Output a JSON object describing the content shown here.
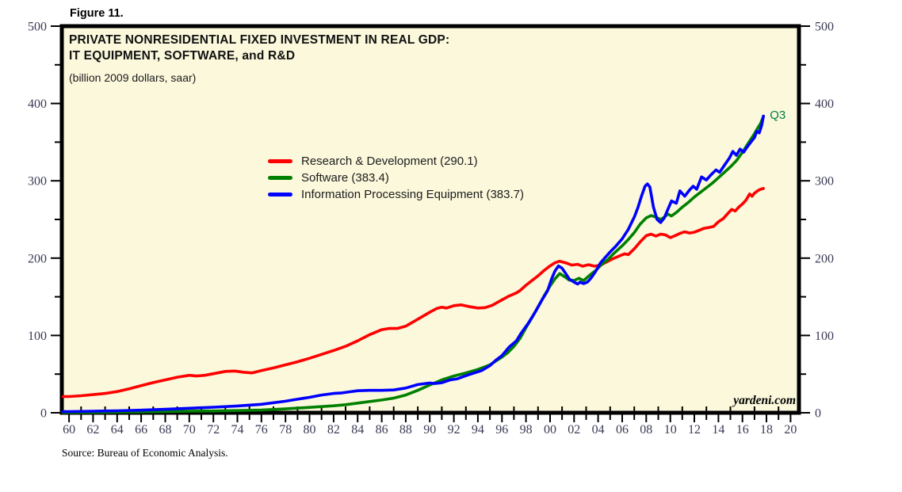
{
  "figure_label": "Figure 11.",
  "title_line1": "PRIVATE NONRESIDENTIAL FIXED INVESTMENT IN REAL GDP:",
  "title_line2": "IT EQUIPMENT, SOFTWARE, and R&D",
  "subtitle": "(billion 2009 dollars, saar)",
  "watermark": "yardeni.com",
  "source": "Source: Bureau of Economic Analysis.",
  "colors": {
    "plot_bg": "#fbf8dc",
    "axis": "#000000",
    "tick_label": "#3a3a55",
    "end_label_color": "#007d42"
  },
  "chart_data": {
    "type": "line",
    "title": "PRIVATE NONRESIDENTIAL FIXED INVESTMENT IN REAL GDP: IT EQUIPMENT, SOFTWARE, and R&D",
    "subtitle": "(billion 2009 dollars, saar)",
    "xlabel": "",
    "ylabel": "billion 2009 dollars, saar",
    "xlim": [
      1959.4,
      2020.7
    ],
    "ylim": [
      0,
      500
    ],
    "grid": false,
    "legend_position": "upper-middle-left",
    "end_label": "Q3",
    "end_label_year": 2017.75,
    "end_label_value": 383.5,
    "y_ticks": [
      0,
      100,
      200,
      300,
      400,
      500
    ],
    "y_minor_step": 50,
    "x_tick_years": [
      1960,
      1962,
      1964,
      1966,
      1968,
      1970,
      1972,
      1974,
      1976,
      1978,
      1980,
      1982,
      1984,
      1986,
      1988,
      1990,
      1992,
      1994,
      1996,
      1998,
      2000,
      2002,
      2004,
      2006,
      2008,
      2010,
      2012,
      2014,
      2016,
      2018,
      2020
    ],
    "x_tick_labels": [
      "60",
      "62",
      "64",
      "66",
      "68",
      "70",
      "72",
      "74",
      "76",
      "78",
      "80",
      "82",
      "84",
      "86",
      "88",
      "90",
      "92",
      "94",
      "96",
      "98",
      "00",
      "02",
      "04",
      "06",
      "08",
      "10",
      "12",
      "14",
      "16",
      "18",
      "20"
    ],
    "series": [
      {
        "name": "Research & Development (290.1)",
        "last_value": 290.1,
        "color": "#ff0000",
        "points": [
          [
            1959.5,
            21
          ],
          [
            1960,
            21
          ],
          [
            1961,
            22
          ],
          [
            1962,
            23.5
          ],
          [
            1963,
            25
          ],
          [
            1964,
            27.5
          ],
          [
            1965,
            31
          ],
          [
            1966,
            35
          ],
          [
            1967,
            39
          ],
          [
            1968,
            42.5
          ],
          [
            1969,
            46
          ],
          [
            1970,
            48.5
          ],
          [
            1970.6,
            47.5
          ],
          [
            1971.3,
            48.5
          ],
          [
            1972,
            50.5
          ],
          [
            1973,
            53.5
          ],
          [
            1973.8,
            54
          ],
          [
            1974.5,
            52.5
          ],
          [
            1975.2,
            51.5
          ],
          [
            1976,
            54.5
          ],
          [
            1977,
            58
          ],
          [
            1978,
            62
          ],
          [
            1979,
            66
          ],
          [
            1980,
            70.5
          ],
          [
            1981,
            75.5
          ],
          [
            1982,
            80.5
          ],
          [
            1983,
            86
          ],
          [
            1984,
            93
          ],
          [
            1985,
            101
          ],
          [
            1986,
            107.5
          ],
          [
            1986.6,
            109
          ],
          [
            1987.3,
            109
          ],
          [
            1988,
            112
          ],
          [
            1989,
            121
          ],
          [
            1990,
            130
          ],
          [
            1990.6,
            135
          ],
          [
            1991,
            136.5
          ],
          [
            1991.4,
            135.5
          ],
          [
            1992,
            138.5
          ],
          [
            1992.6,
            139.5
          ],
          [
            1993.2,
            137.5
          ],
          [
            1994,
            135.5
          ],
          [
            1994.6,
            136
          ],
          [
            1995.2,
            139
          ],
          [
            1996,
            146
          ],
          [
            1996.6,
            151
          ],
          [
            1997.2,
            155
          ],
          [
            1997.5,
            158
          ],
          [
            1998,
            165
          ],
          [
            1998.5,
            171
          ],
          [
            1999,
            177
          ],
          [
            1999.5,
            184
          ],
          [
            2000,
            190
          ],
          [
            2000.4,
            194
          ],
          [
            2000.8,
            196
          ],
          [
            2001.3,
            194
          ],
          [
            2001.8,
            191
          ],
          [
            2002.3,
            192
          ],
          [
            2002.7,
            189.5
          ],
          [
            2003.2,
            191.5
          ],
          [
            2003.7,
            189.5
          ],
          [
            2004.2,
            191
          ],
          [
            2004.7,
            195
          ],
          [
            2005.2,
            199
          ],
          [
            2005.8,
            203
          ],
          [
            2006.2,
            205.5
          ],
          [
            2006.5,
            204.5
          ],
          [
            2007,
            212
          ],
          [
            2007.5,
            221
          ],
          [
            2008,
            229
          ],
          [
            2008.4,
            231
          ],
          [
            2008.8,
            228.5
          ],
          [
            2009.2,
            231
          ],
          [
            2009.6,
            230
          ],
          [
            2010,
            226.5
          ],
          [
            2010.4,
            229
          ],
          [
            2010.8,
            232
          ],
          [
            2011.2,
            234
          ],
          [
            2011.6,
            232.5
          ],
          [
            2012,
            233.5
          ],
          [
            2012.4,
            236
          ],
          [
            2012.8,
            238.5
          ],
          [
            2013.2,
            239.5
          ],
          [
            2013.6,
            241
          ],
          [
            2014,
            247
          ],
          [
            2014.4,
            251
          ],
          [
            2014.8,
            258
          ],
          [
            2015.1,
            263
          ],
          [
            2015.4,
            261
          ],
          [
            2015.7,
            266
          ],
          [
            2016,
            270
          ],
          [
            2016.3,
            275
          ],
          [
            2016.6,
            283
          ],
          [
            2016.8,
            280
          ],
          [
            2017,
            284
          ],
          [
            2017.25,
            287
          ],
          [
            2017.5,
            289
          ],
          [
            2017.75,
            290.1
          ]
        ]
      },
      {
        "name": "Software (383.4)",
        "last_value": 383.4,
        "color": "#008000",
        "points": [
          [
            1959.5,
            0.4
          ],
          [
            1960,
            0.4
          ],
          [
            1962,
            0.6
          ],
          [
            1964,
            0.9
          ],
          [
            1966,
            1.2
          ],
          [
            1968,
            1.6
          ],
          [
            1970,
            2
          ],
          [
            1972,
            2.4
          ],
          [
            1974,
            2.9
          ],
          [
            1976,
            3.6
          ],
          [
            1978,
            5
          ],
          [
            1980,
            7
          ],
          [
            1982,
            9
          ],
          [
            1983,
            10.5
          ],
          [
            1984,
            12.5
          ],
          [
            1985,
            14.5
          ],
          [
            1986,
            16.5
          ],
          [
            1987,
            19
          ],
          [
            1988,
            23
          ],
          [
            1989,
            29
          ],
          [
            1990,
            36
          ],
          [
            1991,
            42.5
          ],
          [
            1992,
            47.5
          ],
          [
            1993,
            51.5
          ],
          [
            1994,
            56
          ],
          [
            1995,
            62
          ],
          [
            1996,
            72
          ],
          [
            1996.5,
            78
          ],
          [
            1997,
            86
          ],
          [
            1997.5,
            96
          ],
          [
            1998,
            110
          ],
          [
            1998.5,
            123
          ],
          [
            1999,
            137
          ],
          [
            1999.5,
            151
          ],
          [
            2000,
            164
          ],
          [
            2000.4,
            173
          ],
          [
            2000.8,
            180
          ],
          [
            2001.2,
            176
          ],
          [
            2001.6,
            171.5
          ],
          [
            2002,
            171
          ],
          [
            2002.4,
            174
          ],
          [
            2002.8,
            171
          ],
          [
            2003.3,
            178
          ],
          [
            2003.8,
            184
          ],
          [
            2004.3,
            192
          ],
          [
            2004.8,
            198
          ],
          [
            2005.3,
            206
          ],
          [
            2006,
            216
          ],
          [
            2006.5,
            224
          ],
          [
            2007,
            233
          ],
          [
            2007.5,
            244
          ],
          [
            2008,
            252
          ],
          [
            2008.4,
            255
          ],
          [
            2008.8,
            253
          ],
          [
            2009.2,
            250
          ],
          [
            2009.5,
            253
          ],
          [
            2009.8,
            257
          ],
          [
            2010.1,
            254.5
          ],
          [
            2010.5,
            259
          ],
          [
            2011,
            266
          ],
          [
            2011.5,
            272
          ],
          [
            2012,
            279
          ],
          [
            2012.5,
            285
          ],
          [
            2013,
            291
          ],
          [
            2013.5,
            297
          ],
          [
            2014,
            304
          ],
          [
            2014.5,
            311
          ],
          [
            2015,
            318
          ],
          [
            2015.5,
            326
          ],
          [
            2016,
            337
          ],
          [
            2016.5,
            349
          ],
          [
            2017,
            361
          ],
          [
            2017.3,
            369
          ],
          [
            2017.5,
            374
          ],
          [
            2017.75,
            383.4
          ]
        ]
      },
      {
        "name": "Information Processing Equipment (383.7)",
        "last_value": 383.7,
        "color": "#0000ff",
        "points": [
          [
            1959.5,
            1.5
          ],
          [
            1960,
            1.5
          ],
          [
            1962,
            2
          ],
          [
            1964,
            2.6
          ],
          [
            1966,
            3.4
          ],
          [
            1968,
            4.5
          ],
          [
            1970,
            5.8
          ],
          [
            1972,
            7.2
          ],
          [
            1974,
            8.8
          ],
          [
            1976,
            11
          ],
          [
            1978,
            15
          ],
          [
            1979,
            17.5
          ],
          [
            1980,
            20
          ],
          [
            1981,
            23
          ],
          [
            1982,
            25
          ],
          [
            1982.6,
            25.5
          ],
          [
            1983.3,
            27
          ],
          [
            1984,
            28.5
          ],
          [
            1985,
            29
          ],
          [
            1986,
            29
          ],
          [
            1987,
            29.5
          ],
          [
            1988,
            32
          ],
          [
            1989,
            36.5
          ],
          [
            1990,
            38.5
          ],
          [
            1990.4,
            37.8
          ],
          [
            1991,
            38.8
          ],
          [
            1991.7,
            42.5
          ],
          [
            1992.3,
            44
          ],
          [
            1993,
            48
          ],
          [
            1993.6,
            51
          ],
          [
            1994.3,
            54.5
          ],
          [
            1995,
            61
          ],
          [
            1995.5,
            68
          ],
          [
            1996,
            74
          ],
          [
            1996.6,
            85
          ],
          [
            1997.2,
            93
          ],
          [
            1997.6,
            103
          ],
          [
            1998.2,
            116
          ],
          [
            1998.8,
            131
          ],
          [
            1999.3,
            145
          ],
          [
            1999.8,
            158
          ],
          [
            2000.1,
            172
          ],
          [
            2000.4,
            183
          ],
          [
            2000.7,
            190
          ],
          [
            2001,
            187
          ],
          [
            2001.3,
            180
          ],
          [
            2001.6,
            173
          ],
          [
            2002,
            169
          ],
          [
            2002.3,
            166.5
          ],
          [
            2002.5,
            169
          ],
          [
            2002.8,
            167
          ],
          [
            2003.1,
            169
          ],
          [
            2003.4,
            174
          ],
          [
            2003.8,
            183
          ],
          [
            2004.2,
            194
          ],
          [
            2004.6,
            201
          ],
          [
            2005,
            208
          ],
          [
            2005.5,
            216
          ],
          [
            2006,
            225
          ],
          [
            2006.5,
            237
          ],
          [
            2007,
            253
          ],
          [
            2007.3,
            265
          ],
          [
            2007.6,
            280
          ],
          [
            2007.9,
            293
          ],
          [
            2008.1,
            296
          ],
          [
            2008.3,
            292
          ],
          [
            2008.6,
            266
          ],
          [
            2008.9,
            250
          ],
          [
            2009.2,
            246
          ],
          [
            2009.5,
            252
          ],
          [
            2009.8,
            263
          ],
          [
            2010.1,
            274
          ],
          [
            2010.5,
            271
          ],
          [
            2010.8,
            287
          ],
          [
            2011.2,
            280
          ],
          [
            2011.6,
            288
          ],
          [
            2011.9,
            293
          ],
          [
            2012.2,
            289
          ],
          [
            2012.6,
            305
          ],
          [
            2013,
            301
          ],
          [
            2013.4,
            308
          ],
          [
            2013.8,
            314
          ],
          [
            2014.1,
            311
          ],
          [
            2014.5,
            320
          ],
          [
            2014.9,
            329
          ],
          [
            2015.2,
            338
          ],
          [
            2015.5,
            333
          ],
          [
            2015.8,
            341
          ],
          [
            2016.1,
            337
          ],
          [
            2016.4,
            344
          ],
          [
            2016.7,
            350
          ],
          [
            2017,
            356
          ],
          [
            2017.2,
            364
          ],
          [
            2017.4,
            362
          ],
          [
            2017.6,
            372
          ],
          [
            2017.75,
            383.7
          ]
        ]
      }
    ]
  }
}
